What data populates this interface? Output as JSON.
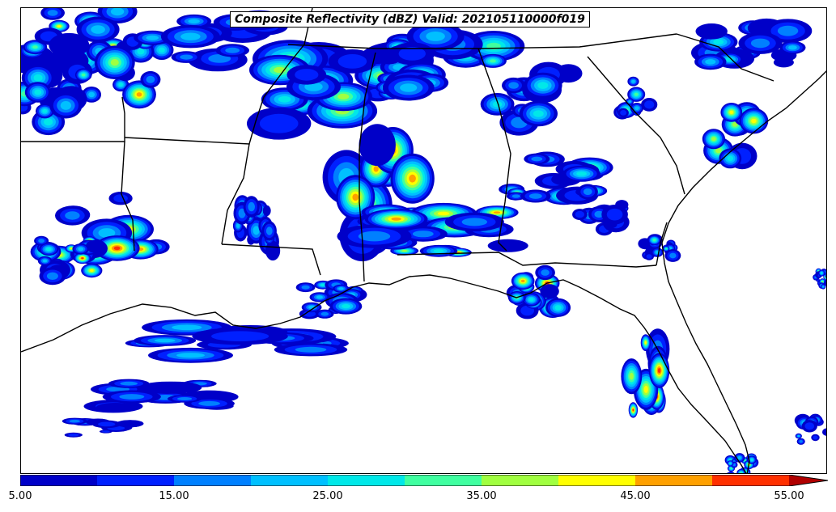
{
  "title": "Composite Reflectivity (dBZ) Valid: 202105110000f019",
  "map": {
    "field": "composite reflectivity",
    "units": "dBZ",
    "region": "southeastern United States",
    "background_color": "#ffffff",
    "boundary_color": "#000000"
  },
  "colorbar": {
    "orientation": "horizontal",
    "placement": "bottom",
    "extend": "max",
    "bounds": [
      5,
      10,
      15,
      20,
      25,
      30,
      35,
      40,
      45,
      50,
      55
    ],
    "colors": [
      "#0000c8",
      "#0020ff",
      "#0080ff",
      "#00c0ff",
      "#00e8e8",
      "#40ffa0",
      "#a0ff40",
      "#ffff00",
      "#ffa000",
      "#ff3000",
      "#b00000"
    ],
    "tick_labels": [
      "5.00",
      "15.00",
      "25.00",
      "35.00",
      "45.00",
      "55.00"
    ]
  }
}
